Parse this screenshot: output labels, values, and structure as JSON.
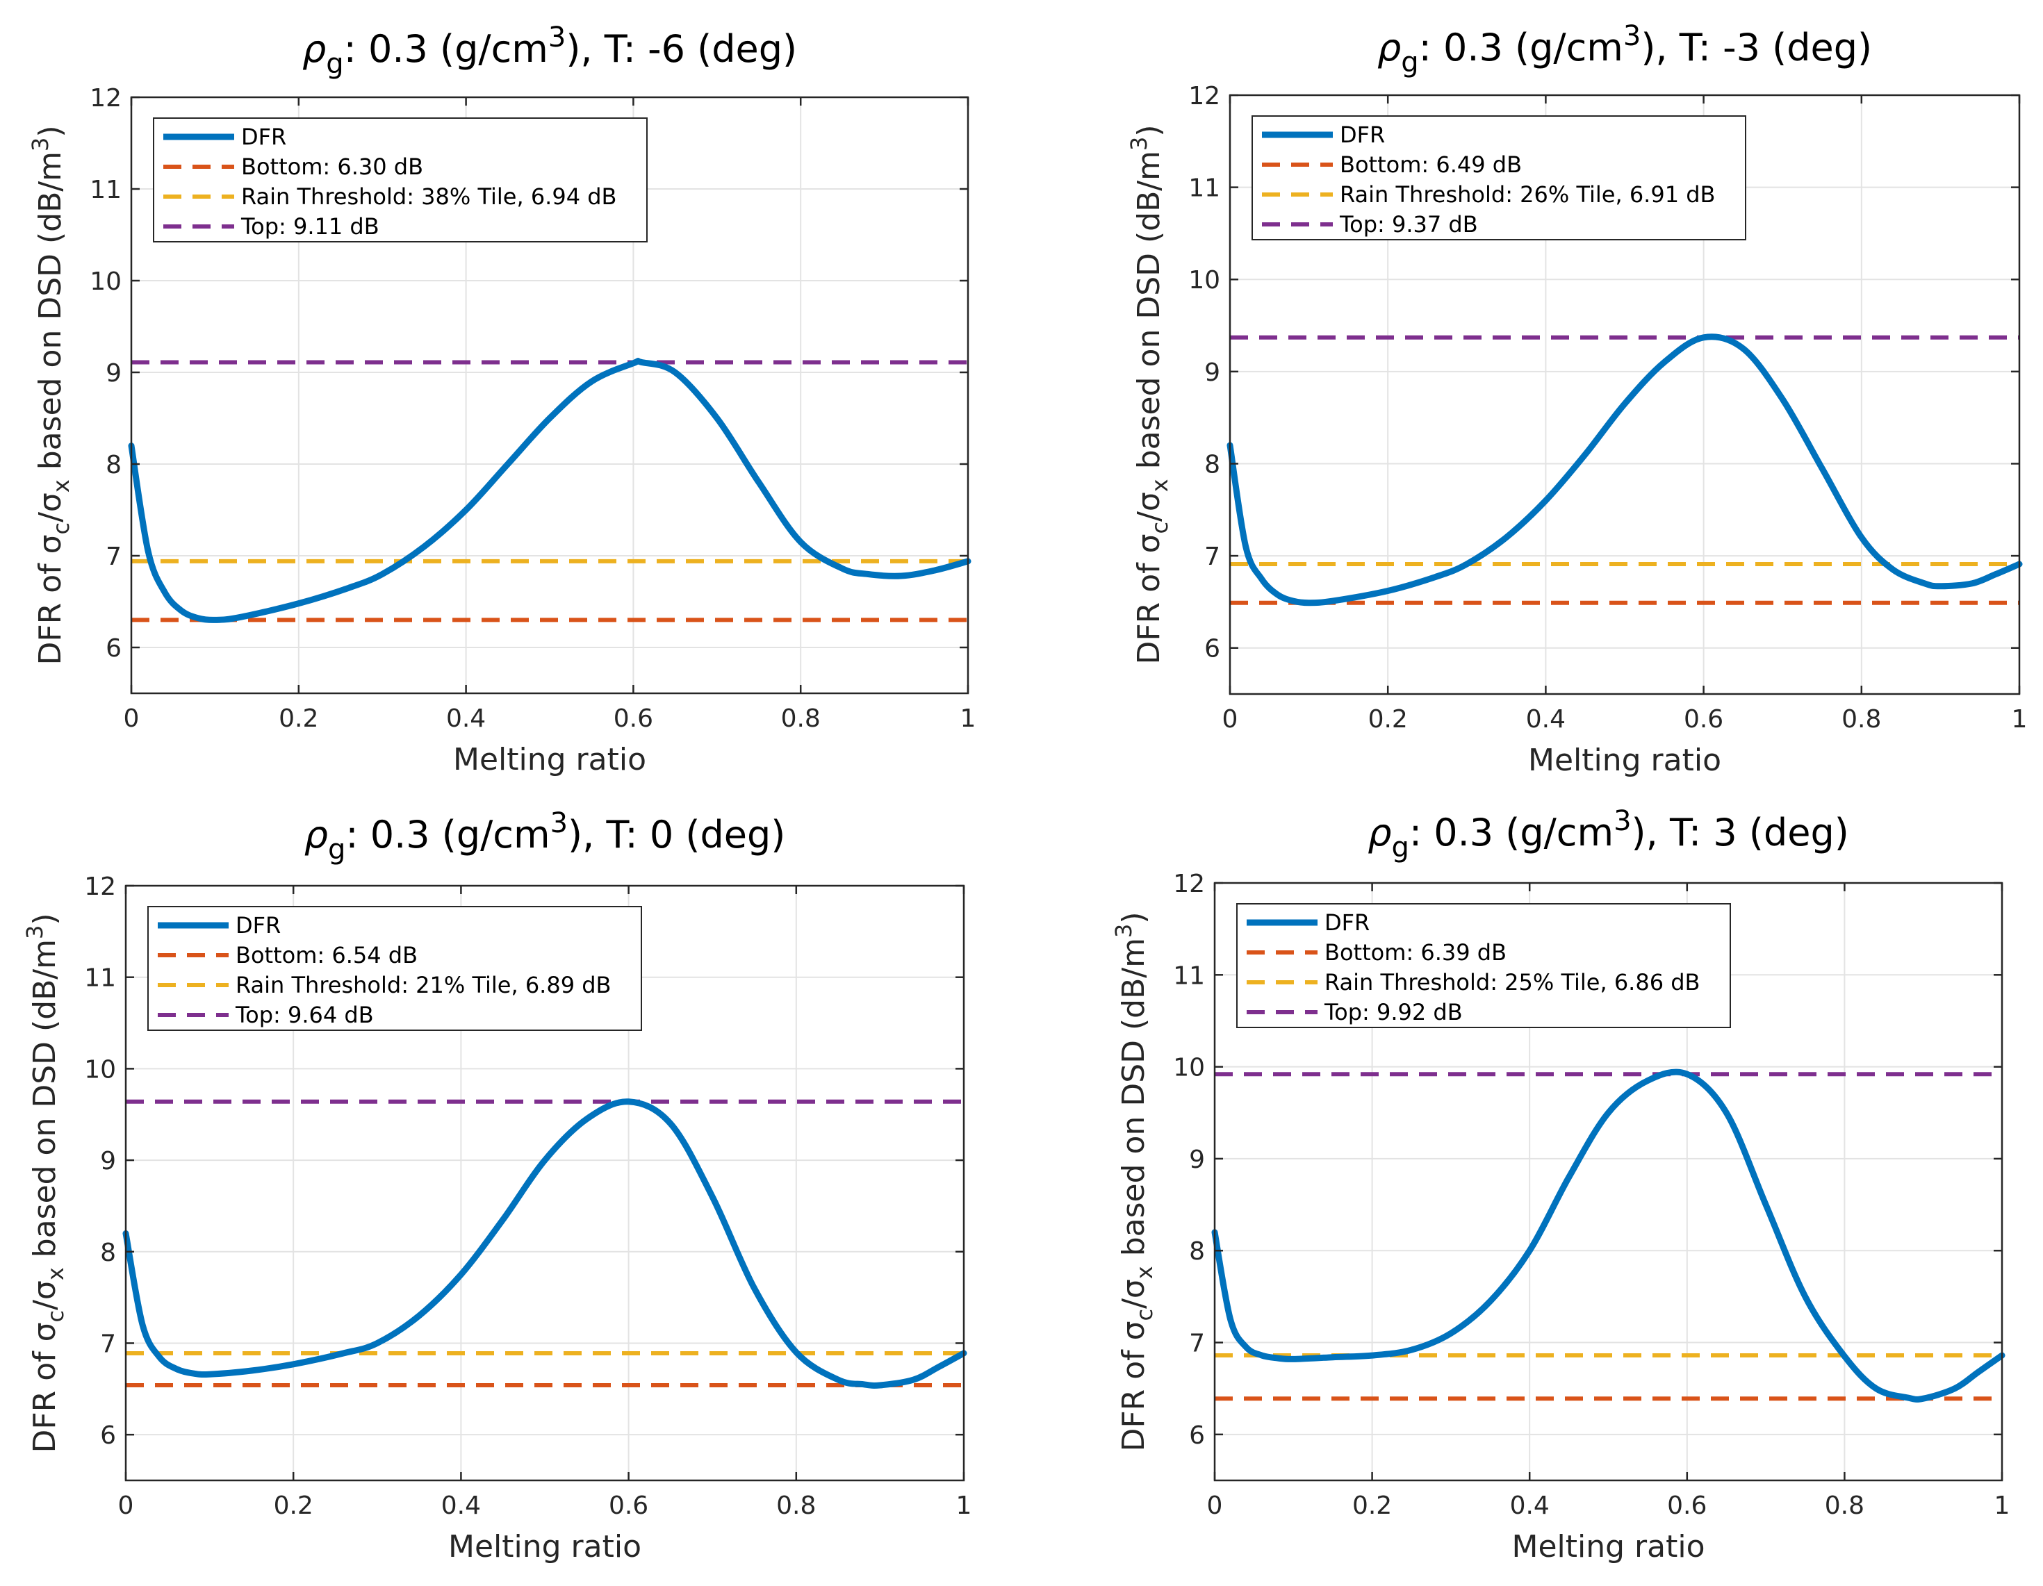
{
  "figure": {
    "background": "#ffffff"
  },
  "colors": {
    "dfr": "#0072BD",
    "bottom": "#D95319",
    "rain": "#EDB120",
    "top": "#7E2F8E",
    "grid": "#e3e3e3",
    "axis": "#262626"
  },
  "chart_data": [
    {
      "type": "line",
      "title_prefix": "ρ",
      "title_sub": "g",
      "title_mid": ": 0.3 (g/cm",
      "title_sup": "3",
      "title_suffix": "), T: -6 (deg)",
      "xlabel": "Melting ratio",
      "ylabel": {
        "p1": "DFR of σ",
        "s1": "c",
        "p2": "/σ",
        "s2": "x",
        "p3": " based on DSD (dB/m",
        "sup": "3",
        "p4": ")"
      },
      "xlim": [
        0,
        1
      ],
      "ylim": [
        5.5,
        12
      ],
      "xticks": [
        0,
        0.2,
        0.4,
        0.6,
        0.8,
        1
      ],
      "xticklabels": [
        "0",
        "0.2",
        "0.4",
        "0.6",
        "0.8",
        "1"
      ],
      "yticks": [
        6,
        7,
        8,
        9,
        10,
        11,
        12
      ],
      "yticklabels": [
        "6",
        "7",
        "8",
        "9",
        "10",
        "11",
        "12"
      ],
      "grid": true,
      "legend": {
        "position": "top-left",
        "entries": [
          "DFR",
          "Bottom: 6.30 dB",
          "Rain Threshold: 38% Tile, 6.94 dB",
          "Top: 9.11 dB"
        ]
      },
      "series": [
        {
          "name": "DFR",
          "x": [
            0,
            0.02,
            0.04,
            0.06,
            0.08,
            0.1,
            0.13,
            0.2,
            0.26,
            0.3,
            0.35,
            0.4,
            0.45,
            0.5,
            0.55,
            0.6,
            0.61,
            0.65,
            0.7,
            0.75,
            0.8,
            0.85,
            0.88,
            0.92,
            0.96,
            1
          ],
          "y": [
            8.2,
            7.05,
            6.6,
            6.4,
            6.32,
            6.3,
            6.33,
            6.48,
            6.65,
            6.8,
            7.1,
            7.5,
            8.0,
            8.5,
            8.9,
            9.1,
            9.11,
            9.0,
            8.5,
            7.8,
            7.15,
            6.86,
            6.8,
            6.78,
            6.84,
            6.94
          ]
        },
        {
          "name": "Bottom",
          "y": 6.3
        },
        {
          "name": "Rain Threshold",
          "y": 6.94
        },
        {
          "name": "Top",
          "y": 9.11
        }
      ]
    },
    {
      "type": "line",
      "title_prefix": "ρ",
      "title_sub": "g",
      "title_mid": ": 0.3 (g/cm",
      "title_sup": "3",
      "title_suffix": "), T: -3 (deg)",
      "xlabel": "Melting ratio",
      "ylabel": {
        "p1": "DFR of σ",
        "s1": "c",
        "p2": "/σ",
        "s2": "x",
        "p3": " based on DSD (dB/m",
        "sup": "3",
        "p4": ")"
      },
      "xlim": [
        0,
        1
      ],
      "ylim": [
        5.5,
        12
      ],
      "xticks": [
        0,
        0.2,
        0.4,
        0.6,
        0.8,
        1
      ],
      "xticklabels": [
        "0",
        "0.2",
        "0.4",
        "0.6",
        "0.8",
        "1"
      ],
      "yticks": [
        6,
        7,
        8,
        9,
        10,
        11,
        12
      ],
      "yticklabels": [
        "6",
        "7",
        "8",
        "9",
        "10",
        "11",
        "12"
      ],
      "grid": true,
      "legend": {
        "position": "top-left",
        "entries": [
          "DFR",
          "Bottom: 6.49 dB",
          "Rain Threshold: 26% Tile, 6.91 dB",
          "Top: 9.37 dB"
        ]
      },
      "series": [
        {
          "name": "DFR",
          "x": [
            0,
            0.02,
            0.04,
            0.06,
            0.08,
            0.1,
            0.13,
            0.2,
            0.26,
            0.3,
            0.35,
            0.4,
            0.45,
            0.5,
            0.55,
            0.6,
            0.65,
            0.7,
            0.75,
            0.8,
            0.84,
            0.88,
            0.9,
            0.94,
            0.97,
            1
          ],
          "y": [
            8.2,
            7.1,
            6.75,
            6.58,
            6.51,
            6.49,
            6.51,
            6.62,
            6.77,
            6.91,
            7.2,
            7.6,
            8.1,
            8.65,
            9.1,
            9.37,
            9.25,
            8.7,
            7.95,
            7.2,
            6.85,
            6.7,
            6.67,
            6.7,
            6.8,
            6.91
          ]
        },
        {
          "name": "Bottom",
          "y": 6.49
        },
        {
          "name": "Rain Threshold",
          "y": 6.91
        },
        {
          "name": "Top",
          "y": 9.37
        }
      ]
    },
    {
      "type": "line",
      "title_prefix": "ρ",
      "title_sub": "g",
      "title_mid": ": 0.3 (g/cm",
      "title_sup": "3",
      "title_suffix": "), T: 0 (deg)",
      "xlabel": "Melting ratio",
      "ylabel": {
        "p1": "DFR of σ",
        "s1": "c",
        "p2": "/σ",
        "s2": "x",
        "p3": " based on DSD (dB/m",
        "sup": "3",
        "p4": ")"
      },
      "xlim": [
        0,
        1
      ],
      "ylim": [
        5.5,
        12
      ],
      "xticks": [
        0,
        0.2,
        0.4,
        0.6,
        0.8,
        1
      ],
      "xticklabels": [
        "0",
        "0.2",
        "0.4",
        "0.6",
        "0.8",
        "1"
      ],
      "yticks": [
        6,
        7,
        8,
        9,
        10,
        11,
        12
      ],
      "yticklabels": [
        "6",
        "7",
        "8",
        "9",
        "10",
        "11",
        "12"
      ],
      "grid": true,
      "legend": {
        "position": "top-left",
        "entries": [
          "DFR",
          "Bottom: 6.54 dB",
          "Rain Threshold: 21% Tile, 6.89 dB",
          "Top: 9.64 dB"
        ]
      },
      "series": [
        {
          "name": "DFR",
          "x": [
            0,
            0.02,
            0.04,
            0.06,
            0.08,
            0.1,
            0.15,
            0.2,
            0.26,
            0.3,
            0.35,
            0.4,
            0.45,
            0.5,
            0.55,
            0.6,
            0.65,
            0.7,
            0.75,
            0.8,
            0.85,
            0.88,
            0.9,
            0.94,
            0.97,
            1
          ],
          "y": [
            8.2,
            7.2,
            6.85,
            6.72,
            6.67,
            6.66,
            6.7,
            6.77,
            6.89,
            7.0,
            7.3,
            7.75,
            8.35,
            9.0,
            9.45,
            9.64,
            9.4,
            8.6,
            7.6,
            6.9,
            6.6,
            6.55,
            6.54,
            6.6,
            6.74,
            6.89
          ]
        },
        {
          "name": "Bottom",
          "y": 6.54
        },
        {
          "name": "Rain Threshold",
          "y": 6.89
        },
        {
          "name": "Top",
          "y": 9.64
        }
      ]
    },
    {
      "type": "line",
      "title_prefix": "ρ",
      "title_sub": "g",
      "title_mid": ": 0.3 (g/cm",
      "title_sup": "3",
      "title_suffix": "), T: 3 (deg)",
      "xlabel": "Melting ratio",
      "ylabel": {
        "p1": "DFR of σ",
        "s1": "c",
        "p2": "/σ",
        "s2": "x",
        "p3": " based on DSD (dB/m",
        "sup": "3",
        "p4": ")"
      },
      "xlim": [
        0,
        1
      ],
      "ylim": [
        5.5,
        12
      ],
      "xticks": [
        0,
        0.2,
        0.4,
        0.6,
        0.8,
        1
      ],
      "xticklabels": [
        "0",
        "0.2",
        "0.4",
        "0.6",
        "0.8",
        "1"
      ],
      "yticks": [
        6,
        7,
        8,
        9,
        10,
        11,
        12
      ],
      "yticklabels": [
        "6",
        "7",
        "8",
        "9",
        "10",
        "11",
        "12"
      ],
      "grid": true,
      "legend": {
        "position": "top-left",
        "entries": [
          "DFR",
          "Bottom: 6.39 dB",
          "Rain Threshold: 25% Tile, 6.86 dB",
          "Top: 9.92 dB"
        ]
      },
      "series": [
        {
          "name": "DFR",
          "x": [
            0,
            0.02,
            0.04,
            0.06,
            0.08,
            0.1,
            0.15,
            0.2,
            0.25,
            0.3,
            0.35,
            0.4,
            0.45,
            0.5,
            0.55,
            0.6,
            0.65,
            0.7,
            0.75,
            0.8,
            0.84,
            0.88,
            0.9,
            0.94,
            0.97,
            1
          ],
          "y": [
            8.2,
            7.25,
            6.95,
            6.86,
            6.83,
            6.82,
            6.84,
            6.86,
            6.92,
            7.1,
            7.45,
            8.0,
            8.8,
            9.5,
            9.85,
            9.92,
            9.5,
            8.5,
            7.5,
            6.85,
            6.5,
            6.4,
            6.39,
            6.5,
            6.68,
            6.86
          ]
        },
        {
          "name": "Bottom",
          "y": 6.39
        },
        {
          "name": "Rain Threshold",
          "y": 6.86
        },
        {
          "name": "Top",
          "y": 9.92
        }
      ]
    }
  ]
}
